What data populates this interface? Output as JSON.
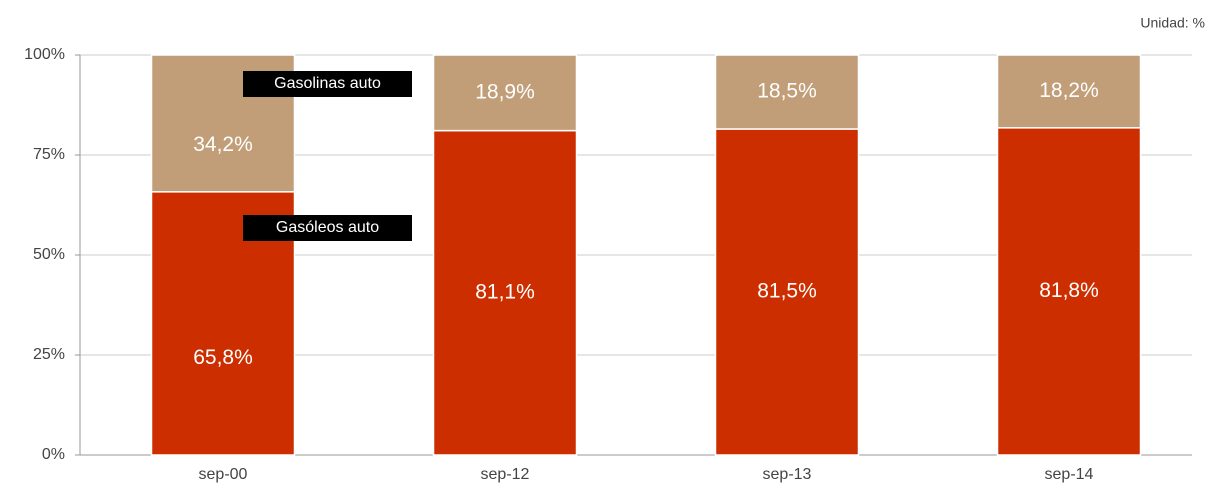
{
  "chart_data": {
    "type": "stacked_bar",
    "unit_label": "Unidad: %",
    "categories": [
      "sep-00",
      "sep-12",
      "sep-13",
      "sep-14"
    ],
    "series": [
      {
        "name": "Gasóleos auto",
        "color": "#cc2e00",
        "values": [
          65.8,
          81.1,
          81.5,
          81.8
        ],
        "value_labels": [
          "65,8%",
          "81,1%",
          "81,5%",
          "81,8%"
        ]
      },
      {
        "name": "Gasolinas auto",
        "color": "#c19e78",
        "values": [
          34.2,
          18.9,
          18.5,
          18.2
        ],
        "value_labels": [
          "34,2%",
          "18,9%",
          "18,5%",
          "18,2%"
        ]
      }
    ],
    "ylim": [
      0,
      100
    ],
    "yticks": [
      {
        "value": 0,
        "label": "0%"
      },
      {
        "value": 25,
        "label": "25%"
      },
      {
        "value": 50,
        "label": "50%"
      },
      {
        "value": 75,
        "label": "75%"
      },
      {
        "value": 100,
        "label": "100%"
      }
    ],
    "grid": true
  }
}
